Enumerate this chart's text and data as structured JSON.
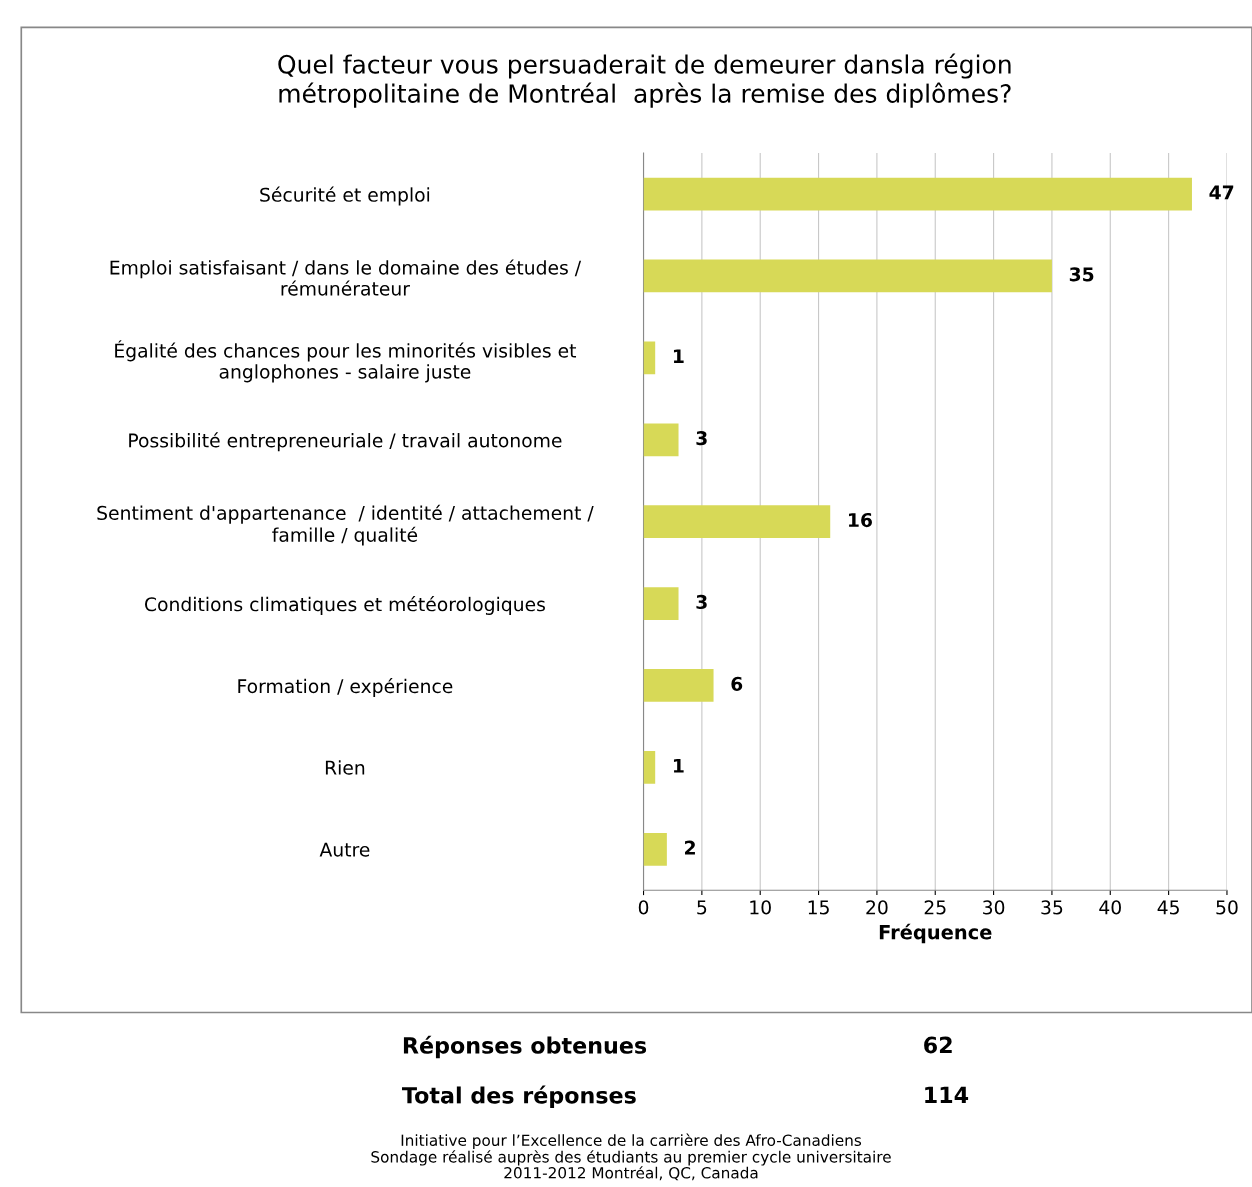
{
  "chart_data": {
    "type": "bar",
    "orientation": "horizontal",
    "title": "Quel facteur vous persuaderait de demeurer dansla région\nmétropolitaine de Montréal  après la remise des diplômes?",
    "xlabel": "Fréquence",
    "categories": [
      "Sécurité et emploi",
      "Emploi satisfaisant / dans le domaine des études /\nrémunérateur",
      "Égalité des chances pour les minorités visibles et\nanglophones - salaire juste",
      "Possibilité entrepreneuriale / travail autonome",
      "Sentiment d'appartenance  / identité / attachement /\nfamille / qualité",
      "Conditions climatiques et météorologiques",
      "Formation / expérience",
      "Rien",
      "Autre"
    ],
    "values": [
      47,
      35,
      1,
      3,
      16,
      3,
      6,
      1,
      2
    ],
    "color": "#d7d957",
    "xlim": [
      0,
      50
    ],
    "xticks": [
      0,
      5,
      10,
      15,
      20,
      25,
      30,
      35,
      40,
      45,
      50
    ],
    "grid": "x",
    "data_labels": true,
    "annotations": [
      "Réponses obtenues",
      "62",
      "Total des réponses",
      "114",
      "Initiative pour l’Excellence de la carrière des Afro-Canadiens\nSondage réalisé auprès des étudiants au premier cycle universitaire\n2011-2012 Montréal, QC, Canada"
    ]
  }
}
